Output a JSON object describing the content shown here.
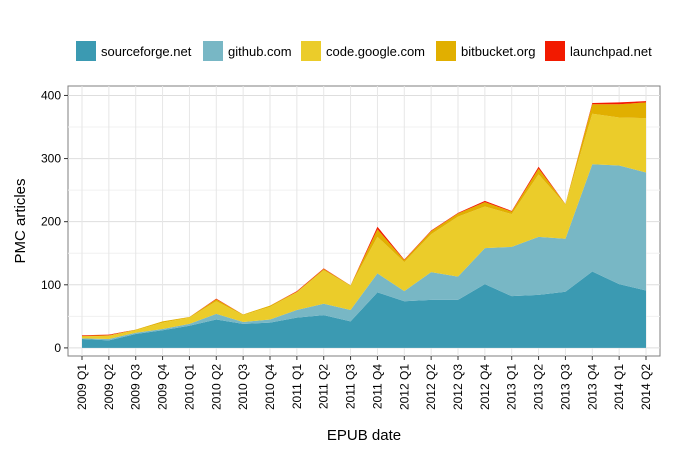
{
  "chart_data": {
    "type": "area",
    "stacked": true,
    "xlabel": "EPUB date",
    "ylabel": "PMC articles",
    "ylim": [
      0,
      400
    ],
    "yticks": [
      0,
      100,
      200,
      300,
      400
    ],
    "grid": true,
    "legend_position": "top",
    "categories": [
      "2009 Q1",
      "2009 Q2",
      "2009 Q3",
      "2009 Q4",
      "2010 Q1",
      "2010 Q2",
      "2010 Q3",
      "2010 Q4",
      "2011 Q1",
      "2011 Q2",
      "2011 Q3",
      "2011 Q4",
      "2012 Q1",
      "2012 Q2",
      "2012 Q3",
      "2012 Q4",
      "2013 Q1",
      "2013 Q2",
      "2013 Q3",
      "2013 Q4",
      "2014 Q1",
      "2014 Q2"
    ],
    "series": [
      {
        "name": "sourceforge.net",
        "color": "#3b9ab2",
        "values": [
          14,
          12,
          22,
          28,
          35,
          45,
          38,
          40,
          48,
          52,
          42,
          88,
          74,
          76,
          76,
          101,
          82,
          84,
          89,
          121,
          101,
          91
        ]
      },
      {
        "name": "github.com",
        "color": "#78b7c5",
        "values": [
          1,
          2,
          2,
          2,
          3,
          9,
          3,
          5,
          12,
          18,
          18,
          30,
          16,
          44,
          37,
          57,
          78,
          92,
          84,
          170,
          188,
          187
        ]
      },
      {
        "name": "code.google.com",
        "color": "#ebcc2a",
        "values": [
          3,
          5,
          4,
          10,
          10,
          20,
          11,
          20,
          28,
          53,
          38,
          58,
          46,
          60,
          95,
          66,
          52,
          99,
          54,
          80,
          76,
          86
        ]
      },
      {
        "name": "bitbucket.org",
        "color": "#e1af00",
        "values": [
          1,
          1,
          1,
          2,
          1,
          3,
          1,
          2,
          1,
          2,
          1,
          12,
          3,
          5,
          5,
          7,
          4,
          9,
          1,
          15,
          21,
          25
        ]
      },
      {
        "name": "launchpad.net",
        "color": "#f21a00",
        "values": [
          1,
          1,
          0,
          0,
          0,
          1,
          0,
          0,
          1,
          1,
          0,
          4,
          1,
          1,
          1,
          2,
          1,
          3,
          0,
          2,
          3,
          2
        ]
      }
    ]
  }
}
